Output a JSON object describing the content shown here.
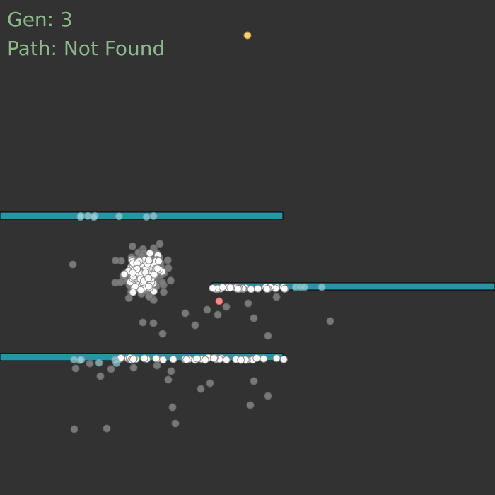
{
  "hud": {
    "gen_label": "Gen:",
    "gen_value": "3",
    "path_label": "Path:",
    "path_value": "Not Found"
  },
  "colors": {
    "background": "#323232",
    "text": "#8db88e",
    "wall": "#2a93a6",
    "dot_dead": "#808080",
    "dot_alive": "#ffffff",
    "dot_best": "#ff8a8a",
    "target": "#ffcf73"
  }
}
